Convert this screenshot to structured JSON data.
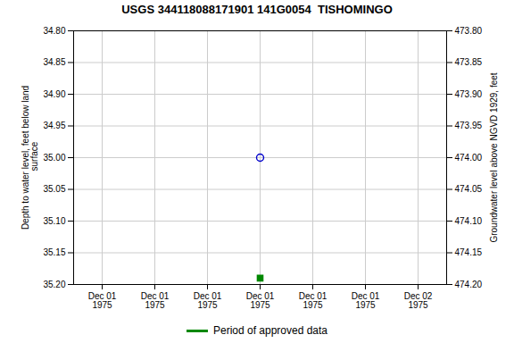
{
  "chart_data": {
    "type": "scatter",
    "title": "USGS 344118088171901 141G0054  TISHOMINGO",
    "ylabel": "Depth to water level, feet below land\n surface",
    "y2label": "Groundwater level above NGVD 1929, feet",
    "categories": [
      "Dec 01\n1975",
      "Dec 01\n1975",
      "Dec 01\n1975",
      "Dec 01\n1975",
      "Dec 01\n1975",
      "Dec 01\n1975",
      "Dec 02\n1975"
    ],
    "series": [
      {
        "color": "#0000cc",
        "marker": "open_circle",
        "values": [
          null,
          null,
          null,
          35.0,
          null,
          null,
          null
        ]
      },
      {
        "name": "Period of approved data",
        "color": "#008800",
        "marker": "square",
        "values": [
          null,
          null,
          null,
          35.19,
          null,
          null,
          null
        ]
      }
    ],
    "ylim": [
      35.2,
      34.8
    ],
    "yticks": [
      {
        "value": 34.8,
        "label": "34.80"
      },
      34.85,
      {
        "value": 34.9,
        "label": "34.90"
      },
      34.95,
      {
        "value": 35.0,
        "label": "35.00"
      },
      35.05,
      {
        "value": 35.1,
        "label": "35.10"
      },
      35.15,
      {
        "value": 35.2,
        "label": "35.20"
      }
    ],
    "y2lim": [
      474.2,
      473.8
    ],
    "y2ticks": [
      {
        "value": 474.2,
        "label": "474.20"
      },
      474.15,
      {
        "value": 474.1,
        "label": "474.10"
      },
      474.05,
      {
        "value": 474.0,
        "label": "474.00"
      },
      473.95,
      {
        "value": 473.9,
        "label": "473.90"
      },
      473.85,
      {
        "value": 473.8,
        "label": "473.80"
      }
    ],
    "grid": true,
    "legend": "bottom"
  }
}
